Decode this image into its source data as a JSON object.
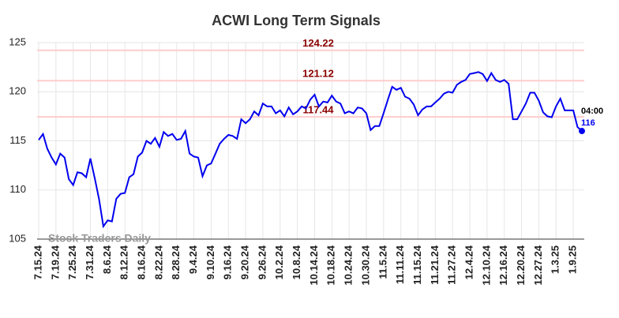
{
  "chart_data": {
    "type": "line",
    "title": "ACWI Long Term Signals",
    "categories": [
      "7.15.24",
      null,
      null,
      null,
      "7.19.24",
      null,
      null,
      null,
      "7.25.24",
      null,
      null,
      null,
      "7.31.24",
      null,
      null,
      null,
      "8.6.24",
      null,
      null,
      null,
      "8.12.24",
      null,
      null,
      null,
      "8.16.24",
      null,
      null,
      null,
      "8.22.24",
      null,
      null,
      null,
      "8.28.24",
      null,
      null,
      null,
      "9.4.24",
      null,
      null,
      null,
      "9.10.24",
      null,
      null,
      null,
      "9.16.24",
      null,
      null,
      null,
      "9.20.24",
      null,
      null,
      null,
      "9.26.24",
      null,
      null,
      null,
      "10.2.24",
      null,
      null,
      null,
      "10.8.24",
      null,
      null,
      null,
      "10.14.24",
      null,
      null,
      null,
      "10.18.24",
      null,
      null,
      null,
      "10.24.24",
      null,
      null,
      null,
      "10.30.24",
      null,
      null,
      null,
      "11.5.24",
      null,
      null,
      null,
      "11.11.24",
      null,
      null,
      null,
      "11.15.24",
      null,
      null,
      null,
      "11.21.24",
      null,
      null,
      null,
      "11.27.24",
      null,
      null,
      null,
      "12.4.24",
      null,
      null,
      null,
      "12.10.24",
      null,
      null,
      null,
      "12.16.24",
      null,
      null,
      null,
      "12.20.24",
      null,
      null,
      null,
      "12.27.24",
      null,
      null,
      null,
      "1.3.25",
      null,
      null,
      null,
      "1.9.25",
      null,
      null
    ],
    "series": [
      {
        "color": "#0000ee",
        "values": [
          115.1,
          115.7,
          114.2,
          113.3,
          112.6,
          113.7,
          113.3,
          111.1,
          110.5,
          111.8,
          111.7,
          111.3,
          113.2,
          111.2,
          109.1,
          106.3,
          106.9,
          106.8,
          109.1,
          109.6,
          109.7,
          111.3,
          111.6,
          113.4,
          113.8,
          115.0,
          114.7,
          115.3,
          114.4,
          115.9,
          115.5,
          115.7,
          115.1,
          115.2,
          116.0,
          113.7,
          113.4,
          113.3,
          111.4,
          112.5,
          112.7,
          113.7,
          114.7,
          115.2,
          115.6,
          115.5,
          115.2,
          117.2,
          116.8,
          117.2,
          118.0,
          117.6,
          118.8,
          118.5,
          118.5,
          117.8,
          118.1,
          117.5,
          118.4,
          117.7,
          118.0,
          118.5,
          118.3,
          119.2,
          119.7,
          118.5,
          119.0,
          118.9,
          119.6,
          119.0,
          118.8,
          117.8,
          118.0,
          117.8,
          118.4,
          118.3,
          117.8,
          116.1,
          116.5,
          116.5,
          117.8,
          119.2,
          120.5,
          120.2,
          120.4,
          119.5,
          119.3,
          118.7,
          117.6,
          118.2,
          118.5,
          118.5,
          118.9,
          119.3,
          119.8,
          120.0,
          119.9,
          120.7,
          121.0,
          121.2,
          121.8,
          121.9,
          122.0,
          121.8,
          121.1,
          121.9,
          121.2,
          121.0,
          121.2,
          120.8,
          117.2,
          117.2,
          118.0,
          118.8,
          119.9,
          119.9,
          119.1,
          117.9,
          117.5,
          117.4,
          118.5,
          119.3,
          118.1,
          118.1,
          118.1,
          116.4,
          116
        ]
      }
    ],
    "ylim": [
      105,
      125
    ],
    "yticks": [
      105,
      110,
      115,
      120,
      125
    ],
    "grid": true,
    "hlines": {
      "values": [
        124.22,
        121.12,
        117.44
      ],
      "color": "#ffcccc",
      "label_color": "#8b0000"
    },
    "end_annotation": "04:00",
    "watermark": "Stock Traders Daily"
  }
}
